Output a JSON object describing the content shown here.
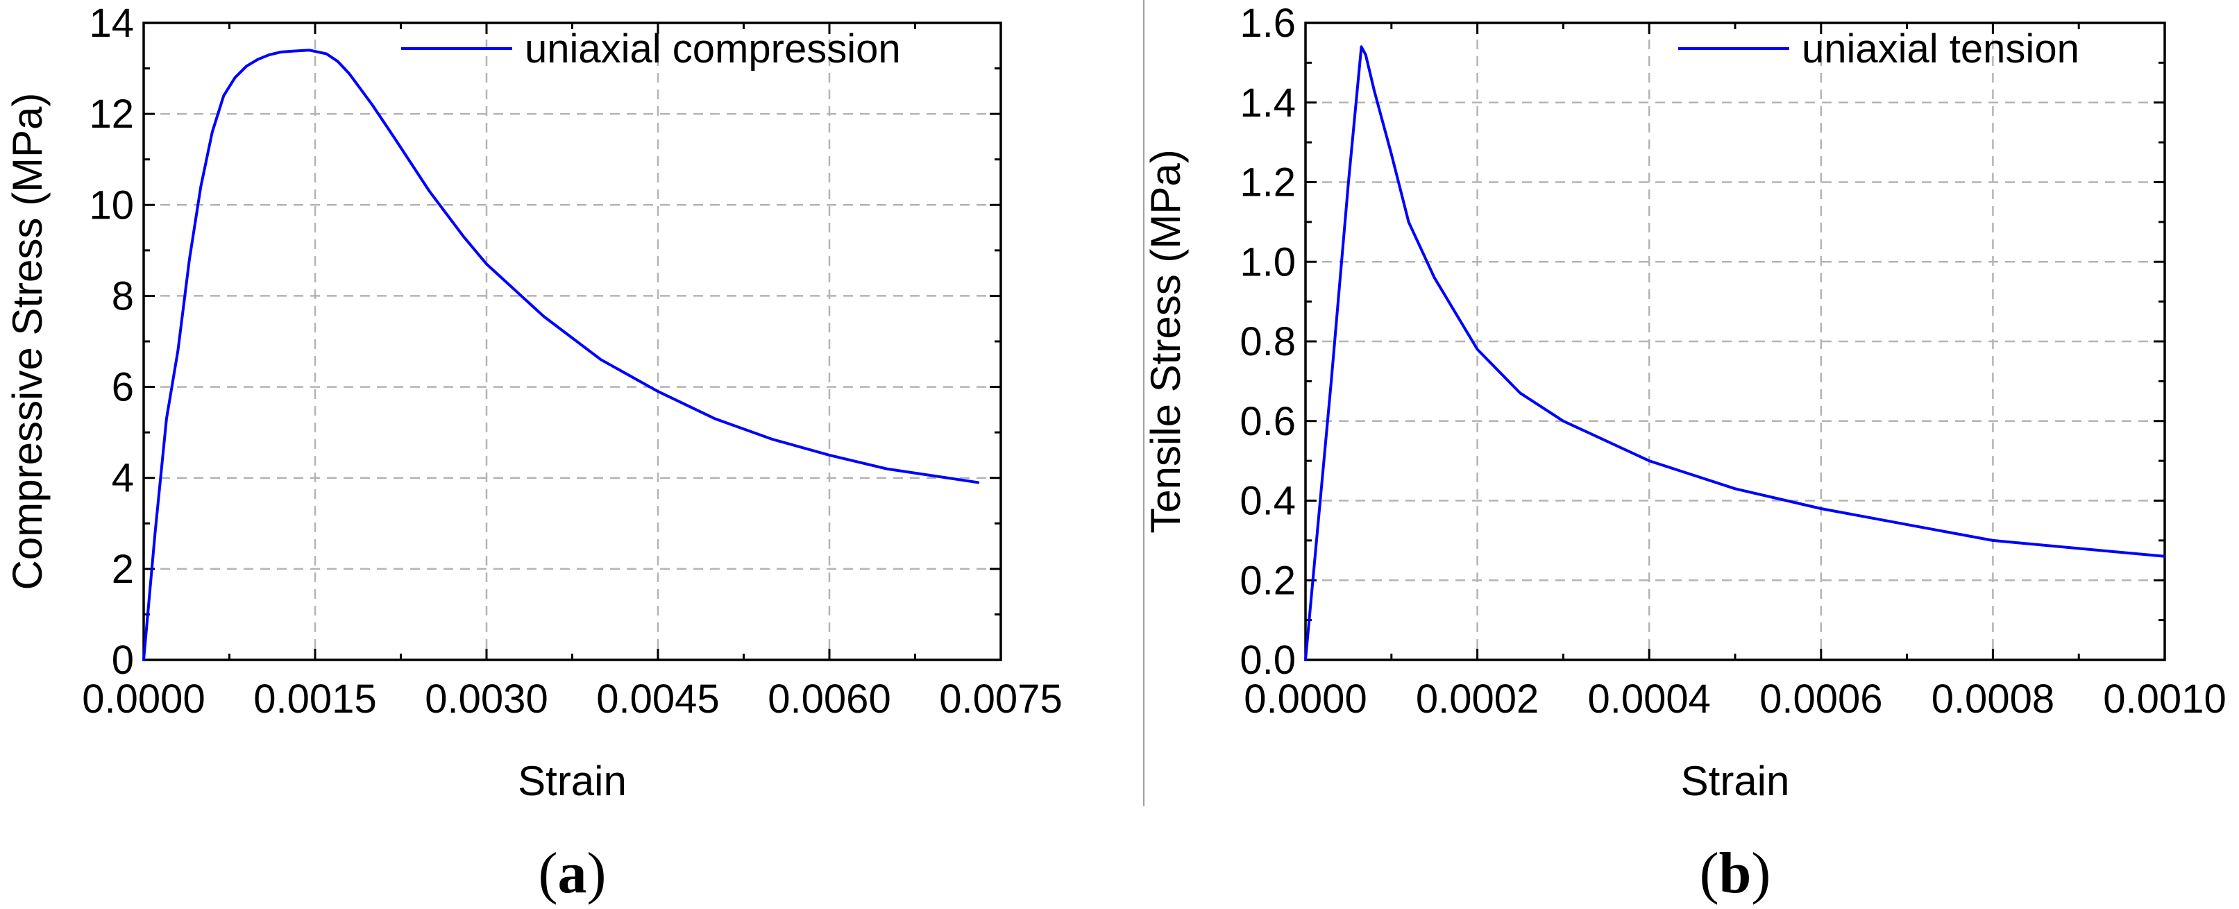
{
  "figure": {
    "divider_color": "#a0a0a0",
    "line_color": "#0000ff",
    "grid_color": "#b4b4b4"
  },
  "chart_data": [
    {
      "type": "line",
      "panel_label": {
        "open": "(",
        "letter": "a",
        "close": ")"
      },
      "xlabel": "Strain",
      "ylabel": "Compressive Stress (MPa)",
      "xlim": [
        0,
        0.0075
      ],
      "ylim": [
        0,
        14
      ],
      "x_ticks": [
        0,
        0.0015,
        0.003,
        0.0045,
        0.006,
        0.0075
      ],
      "x_tick_labels": [
        "0.0000",
        "0.0015",
        "0.0030",
        "0.0045",
        "0.0060",
        "0.0075"
      ],
      "y_ticks": [
        0,
        2,
        4,
        6,
        8,
        10,
        12,
        14
      ],
      "y_tick_labels": [
        "0",
        "2",
        "4",
        "6",
        "8",
        "10",
        "12",
        "14"
      ],
      "grid": true,
      "legend_position": "top-right",
      "series": [
        {
          "name": "uniaxial compression",
          "color": "#0000ff",
          "x": [
            0,
            0.0001,
            0.0002,
            0.0003,
            0.0004,
            0.0005,
            0.0006,
            0.0007,
            0.0008,
            0.0009,
            0.001,
            0.0011,
            0.0012,
            0.0013,
            0.00145,
            0.0016,
            0.0017,
            0.0018,
            0.002,
            0.0022,
            0.0025,
            0.0028,
            0.003,
            0.0035,
            0.004,
            0.0045,
            0.005,
            0.0055,
            0.006,
            0.0065,
            0.0073
          ],
          "y": [
            0,
            2.8,
            5.3,
            6.8,
            8.8,
            10.4,
            11.6,
            12.4,
            12.8,
            13.05,
            13.2,
            13.3,
            13.36,
            13.38,
            13.4,
            13.32,
            13.15,
            12.88,
            12.2,
            11.45,
            10.3,
            9.3,
            8.7,
            7.55,
            6.6,
            5.9,
            5.3,
            4.85,
            4.5,
            4.2,
            3.9
          ]
        }
      ]
    },
    {
      "type": "line",
      "panel_label": {
        "open": "(",
        "letter": "b",
        "close": ")"
      },
      "xlabel": "Strain",
      "ylabel": "Tensile Stress (MPa)",
      "xlim": [
        0,
        0.001
      ],
      "ylim": [
        0,
        1.6
      ],
      "x_ticks": [
        0,
        0.0002,
        0.0004,
        0.0006,
        0.0008,
        0.001
      ],
      "x_tick_labels": [
        "0.0000",
        "0.0002",
        "0.0004",
        "0.0006",
        "0.0008",
        "0.0010"
      ],
      "y_ticks": [
        0,
        0.2,
        0.4,
        0.6,
        0.8,
        1.0,
        1.2,
        1.4,
        1.6
      ],
      "y_tick_labels": [
        "0.0",
        "0.2",
        "0.4",
        "0.6",
        "0.8",
        "1.0",
        "1.2",
        "1.4",
        "1.6"
      ],
      "grid": true,
      "legend_position": "top-right",
      "series": [
        {
          "name": "uniaxial tension",
          "color": "#0000ff",
          "x": [
            0,
            3e-05,
            5e-05,
            6.5e-05,
            7e-05,
            8e-05,
            0.0001,
            0.00012,
            0.00015,
            0.0002,
            0.00025,
            0.0003,
            0.0004,
            0.0005,
            0.0006,
            0.0008,
            0.001
          ],
          "y": [
            0,
            0.7,
            1.2,
            1.54,
            1.52,
            1.43,
            1.27,
            1.1,
            0.96,
            0.78,
            0.67,
            0.6,
            0.5,
            0.43,
            0.38,
            0.3,
            0.26
          ]
        }
      ]
    }
  ]
}
